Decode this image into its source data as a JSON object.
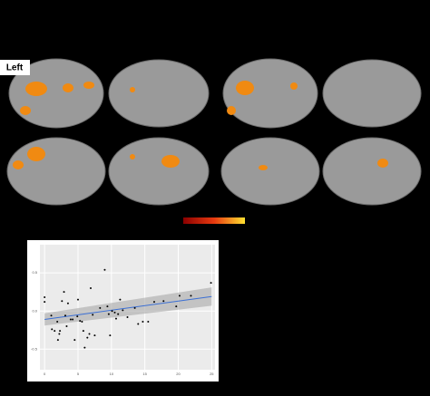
{
  "label": "Left",
  "chart_data": {
    "type": "scatter",
    "x": [
      0,
      0,
      1.0,
      1.1,
      1.5,
      1.9,
      2.0,
      2.2,
      2.3,
      2.6,
      2.9,
      3.1,
      3.3,
      3.5,
      3.9,
      4.2,
      4.5,
      4.9,
      5.0,
      5.3,
      5.6,
      5.8,
      6.0,
      6.4,
      6.7,
      6.9,
      7.2,
      7.5,
      8.3,
      9.0,
      9.4,
      9.6,
      9.8,
      10.1,
      10.5,
      10.7,
      11.0,
      11.3,
      11.7,
      12.4,
      13.5,
      14.0,
      14.7,
      15.5,
      16.4,
      17.8,
      19.7,
      20.2,
      21.9,
      24.9
    ],
    "values": [
      0.18,
      0.12,
      -0.06,
      -0.24,
      -0.26,
      -0.14,
      -0.38,
      -0.3,
      -0.26,
      0.13,
      0.25,
      -0.06,
      -0.2,
      0.1,
      -0.11,
      -0.11,
      -0.38,
      -0.07,
      0.15,
      -0.13,
      -0.14,
      -0.26,
      -0.48,
      -0.35,
      -0.3,
      0.3,
      -0.05,
      -0.32,
      0.04,
      0.54,
      0.06,
      -0.04,
      -0.32,
      0.0,
      -0.02,
      -0.1,
      -0.04,
      0.15,
      0.01,
      -0.08,
      0.04,
      -0.17,
      -0.14,
      -0.14,
      0.12,
      0.13,
      0.06,
      0.2,
      0.2,
      0.37
    ],
    "color": "#000000",
    "fit": {
      "x": [
        0,
        25
      ],
      "values": [
        -0.11,
        0.19
      ],
      "lower": [
        -0.19,
        0.07
      ],
      "upper": [
        -0.03,
        0.31
      ],
      "color": "#3b6fd4"
    },
    "xlim": [
      -0.7,
      25.5
    ],
    "ylim": [
      -0.77,
      0.87
    ],
    "xticks": [
      0,
      5,
      10,
      15,
      20,
      25
    ],
    "yticks": [
      {
        "value": 0.5,
        "label": "0.5"
      },
      {
        "value": 0,
        "label": "0.0"
      },
      {
        "value": -0.5,
        "label": "-0.5"
      }
    ],
    "grid": true
  }
}
